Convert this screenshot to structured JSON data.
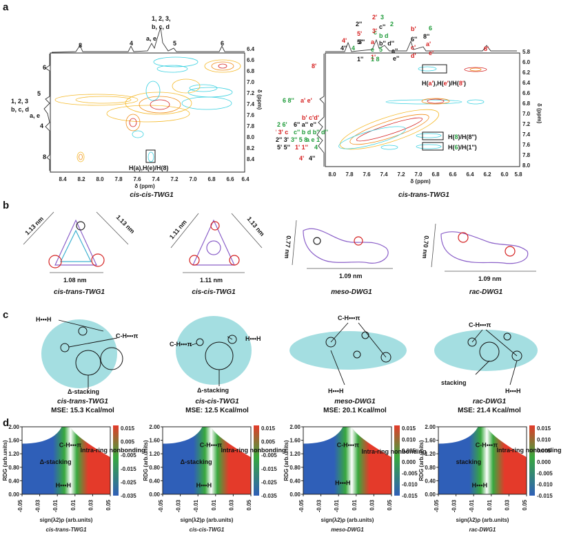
{
  "panel_labels": {
    "a": "a",
    "b": "b",
    "c": "c",
    "d": "d"
  },
  "panel_a": {
    "left": {
      "caption": "cis-cis-TWG1",
      "xlabel": "δ (ppm)",
      "ylabel": "δ (ppm)",
      "x_ticks": [
        "8.4",
        "8.2",
        "8.0",
        "7.8",
        "7.6",
        "7.4",
        "7.2",
        "7.0",
        "6.8",
        "6.6",
        "6.4"
      ],
      "y_ticks": [
        "6.4",
        "6.6",
        "6.8",
        "7.0",
        "7.2",
        "7.4",
        "7.6",
        "7.8",
        "8.0",
        "8.2",
        "8.4"
      ],
      "top_labels": {
        "p123": "1, 2, 3,",
        "pbcd": "b, c, d",
        "pae": "a, e",
        "p8": "8",
        "p4": "4",
        "p5": "5",
        "p6": "6"
      },
      "left_labels": {
        "l6": "6",
        "l5": "5",
        "l123": "1, 2, 3",
        "lbcd": "b, c, d",
        "lae": "a, e",
        "l4": "4",
        "l8": "8"
      },
      "box_label": "H(a),H(e)/H(8)"
    },
    "right": {
      "caption": "cis-trans-TWG1",
      "xlabel": "δ (ppm)",
      "ylabel": "δ (ppm)",
      "x_ticks": [
        "8.0",
        "7.8",
        "7.6",
        "7.4",
        "7.2",
        "7.0",
        "6.8",
        "6.6",
        "6.4",
        "6.2",
        "6.0",
        "5.8"
      ],
      "y_ticks": [
        "5.8",
        "6.0",
        "6.2",
        "6.4",
        "6.6",
        "6.8",
        "7.0",
        "7.2",
        "7.4",
        "7.6",
        "7.8",
        "8.0"
      ],
      "box1": {
        "prefix": "H(",
        "a1": "a'",
        "sep1": "),H(",
        "e1": "e'",
        "sep2": ")/H(",
        "n8": "8'",
        "suffix": ")"
      },
      "box2": {
        "prefix": "H(",
        "n8": "8",
        "mid": ")/H(8''",
        "suffix": ")"
      },
      "box3": {
        "prefix": "H(",
        "n6": "6",
        "mid": ")/H(1''",
        "suffix": ")"
      },
      "top_rows": [
        {
          "red": "4'",
          "blk": "4''",
          "grn": "4"
        },
        {
          "red": "5'",
          "blk": "5''",
          "grn": "e"
        },
        {
          "red": "1'",
          "blk": "1''",
          "grn": "1 8"
        }
      ],
      "top_right": {
        "r1": "2'",
        "g1": "3",
        "g2": "2",
        "g3": "c",
        "g4": "b d",
        "b1": "2''",
        "b2": "c''",
        "b3": "3''",
        "b4": "b'' d''",
        "r2": "3'",
        "r3": "a",
        "g5": "5"
      },
      "top_far": {
        "g6": "6",
        "b5": "8''",
        "r4": "b'",
        "r5": "a'",
        "r6": "c'",
        "r7": "d'",
        "r8": "e'",
        "b6": "6''",
        "b7": "a''",
        "b8": "e''",
        "r9": "8'"
      },
      "left_rows": {
        "r1": "8'",
        "r2a": "6 8''",
        "r2b": "a' e'",
        "r3": "b' c'd'",
        "r4a": "2 6'",
        "r4b": "6'' a'' e''",
        "r5a": "2' 3' c",
        "r5b": "c'' b d b'' d''",
        "r6a": "2'' 3'",
        "r6b": "3'' 5 8",
        "r6c": "a e 1",
        "r7a": "5' 5''",
        "r7b": "1' 1''",
        "r7c": "4",
        "r8a": "4'",
        "r8b": "4''"
      }
    }
  },
  "panel_b": [
    {
      "name": "cis-trans-TWG1",
      "dims": [
        "1.13 nm",
        "1.13 nm",
        "1.08 nm"
      ]
    },
    {
      "name": "cis-cis-TWG1",
      "dims": [
        "1.11 nm",
        "1.13 nm",
        "1.11 nm"
      ]
    },
    {
      "name": "meso-DWG1",
      "dims": [
        "0.77 nm",
        "1.09 nm"
      ]
    },
    {
      "name": "rac-DWG1",
      "dims": [
        "0.70 nm",
        "1.09 nm"
      ]
    }
  ],
  "panel_c": [
    {
      "name": "cis-trans-TWG1",
      "mse": "MSE: 15.3 Kcal/mol",
      "labels": [
        "H•••H",
        "C-H•••π",
        "Δ-stacking"
      ]
    },
    {
      "name": "cis-cis-TWG1",
      "mse": "MSE: 12.5 Kcal/mol",
      "labels": [
        "C-H•••π",
        "H•••H",
        "Δ-stacking"
      ]
    },
    {
      "name": "meso-DWG1",
      "mse": "MSE: 20.1 Kcal/mol",
      "labels": [
        "C-H•••π",
        "H•••H"
      ]
    },
    {
      "name": "rac-DWG1",
      "mse": "MSE: 21.4 Kcal/mol",
      "labels": [
        "C-H•••π",
        "stacking",
        "H•••H"
      ]
    }
  ],
  "chart_data": [
    {
      "type": "scatter",
      "title": "cis-trans-TWG1",
      "xlabel": "sign(λ2)ρ (arb.units)",
      "ylabel": "RDG (arb.units)",
      "x_ticks": [
        "-0.05",
        "-0.03",
        "-0.01",
        "0.01",
        "0.03",
        "0.05"
      ],
      "y_ticks": [
        "0.00",
        "0.40",
        "0.80",
        "1.20",
        "1.60",
        "2.00"
      ],
      "xlim": [
        -0.05,
        0.05
      ],
      "ylim": [
        0,
        2.0
      ],
      "colorbar": [
        "0.015",
        "0.005",
        "-0.005",
        "-0.015",
        "-0.025",
        "-0.035"
      ],
      "annotations": [
        "C-H•••π",
        "Δ-stacking",
        "H•••H",
        "Intra-ring nonbonding"
      ]
    },
    {
      "type": "scatter",
      "title": "cis-cis-TWG1",
      "xlabel": "sign(λ2)ρ (arb.units)",
      "ylabel": "RDG (arb.units)",
      "x_ticks": [
        "-0.05",
        "-0.03",
        "-0.01",
        "0.01",
        "0.03",
        "0.05"
      ],
      "y_ticks": [
        "0.00",
        "0.40",
        "0.80",
        "1.20",
        "1.60",
        "2.00"
      ],
      "xlim": [
        -0.05,
        0.05
      ],
      "ylim": [
        0,
        2.0
      ],
      "colorbar": [
        "0.015",
        "0.005",
        "-0.005",
        "-0.015",
        "-0.025",
        "-0.035"
      ],
      "annotations": [
        "C-H•••π",
        "Δ-stacking",
        "H•••H",
        "Intra-ring nonbonding"
      ]
    },
    {
      "type": "scatter",
      "title": "meso-DWG1",
      "xlabel": "sign(λ2)ρ (arb.units)",
      "ylabel": "RDG (arb.units)",
      "x_ticks": [
        "-0.05",
        "-0.03",
        "-0.01",
        "0.01",
        "0.03",
        "0.05"
      ],
      "y_ticks": [
        "0.00",
        "0.40",
        "0.80",
        "1.20",
        "1.60",
        "2.00"
      ],
      "xlim": [
        -0.05,
        0.05
      ],
      "ylim": [
        0,
        2.0
      ],
      "colorbar": [
        "0.015",
        "0.010",
        "0.005",
        "0.000",
        "-0.005",
        "-0.010",
        "-0.015"
      ],
      "annotations": [
        "C-H•••π",
        "H•••H",
        "Intra-ring nonbonding"
      ]
    },
    {
      "type": "scatter",
      "title": "rac-DWG1",
      "xlabel": "sign(λ2)ρ (arb.units)",
      "ylabel": "RDG (arb.units)",
      "x_ticks": [
        "-0.05",
        "-0.03",
        "-0.01",
        "0.01",
        "0.03",
        "0.05"
      ],
      "y_ticks": [
        "0.00",
        "0.40",
        "0.80",
        "1.20",
        "1.60",
        "2.00"
      ],
      "xlim": [
        -0.05,
        0.05
      ],
      "ylim": [
        0,
        2.0
      ],
      "colorbar": [
        "0.015",
        "0.010",
        "0.005",
        "0.000",
        "-0.005",
        "-0.010",
        "-0.015"
      ],
      "annotations": [
        "C-H•••π",
        "stacking",
        "H•••H",
        "Intra-ring nonbonding"
      ]
    }
  ]
}
